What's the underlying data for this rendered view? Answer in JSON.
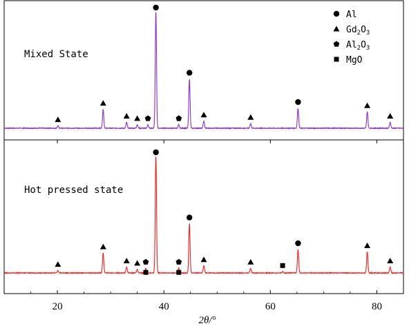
{
  "chart_data": {
    "type": "line",
    "xlabel": "2θ/°",
    "xlim": [
      10,
      85
    ],
    "xticks": [
      20,
      40,
      60,
      80
    ],
    "grid": false,
    "legend_position": "top-right",
    "legend": [
      {
        "marker": "circle",
        "label": "Al",
        "sub": ""
      },
      {
        "marker": "triangle",
        "label": "Gd",
        "sub": "2",
        "label2": "O",
        "sub2": "3"
      },
      {
        "marker": "pentagon",
        "label": "Al",
        "sub": "2",
        "label2": "O",
        "sub2": "3"
      },
      {
        "marker": "square",
        "label": "MgO",
        "sub": ""
      }
    ],
    "panels": [
      {
        "name": "Mixed State",
        "color": "#8A2BE2",
        "peaks": [
          {
            "x": 20.1,
            "h": 0.02,
            "marker": "triangle"
          },
          {
            "x": 28.6,
            "h": 0.16,
            "marker": "triangle"
          },
          {
            "x": 33.0,
            "h": 0.05,
            "marker": "triangle"
          },
          {
            "x": 35.0,
            "h": 0.03,
            "marker": "triangle"
          },
          {
            "x": 37.0,
            "h": 0.03,
            "marker": "pentagon"
          },
          {
            "x": 38.5,
            "h": 1.0,
            "marker": "circle"
          },
          {
            "x": 42.8,
            "h": 0.03,
            "marker": "pentagon"
          },
          {
            "x": 44.8,
            "h": 0.42,
            "marker": "circle"
          },
          {
            "x": 47.5,
            "h": 0.06,
            "marker": "triangle"
          },
          {
            "x": 56.3,
            "h": 0.04,
            "marker": "triangle"
          },
          {
            "x": 65.2,
            "h": 0.17,
            "marker": "circle"
          },
          {
            "x": 78.2,
            "h": 0.14,
            "marker": "triangle"
          },
          {
            "x": 82.5,
            "h": 0.05,
            "marker": "triangle"
          }
        ]
      },
      {
        "name": "Hot pressed state",
        "color": "#FF1A1A",
        "peaks": [
          {
            "x": 20.1,
            "h": 0.02,
            "marker": "triangle"
          },
          {
            "x": 28.6,
            "h": 0.17,
            "marker": "triangle"
          },
          {
            "x": 33.0,
            "h": 0.05,
            "marker": "triangle"
          },
          {
            "x": 35.0,
            "h": 0.03,
            "marker": "triangle"
          },
          {
            "x": 36.6,
            "h": 0.04,
            "marker": "pentagon",
            "marker2": "square"
          },
          {
            "x": 38.5,
            "h": 1.0,
            "marker": "circle"
          },
          {
            "x": 42.8,
            "h": 0.04,
            "marker": "pentagon",
            "marker2": "square"
          },
          {
            "x": 44.8,
            "h": 0.42,
            "marker": "circle"
          },
          {
            "x": 47.5,
            "h": 0.06,
            "marker": "triangle"
          },
          {
            "x": 56.3,
            "h": 0.04,
            "marker": "triangle"
          },
          {
            "x": 62.3,
            "h": 0.01,
            "marker": "square"
          },
          {
            "x": 65.2,
            "h": 0.2,
            "marker": "circle"
          },
          {
            "x": 78.2,
            "h": 0.18,
            "marker": "triangle"
          },
          {
            "x": 82.5,
            "h": 0.05,
            "marker": "triangle"
          }
        ]
      }
    ]
  }
}
